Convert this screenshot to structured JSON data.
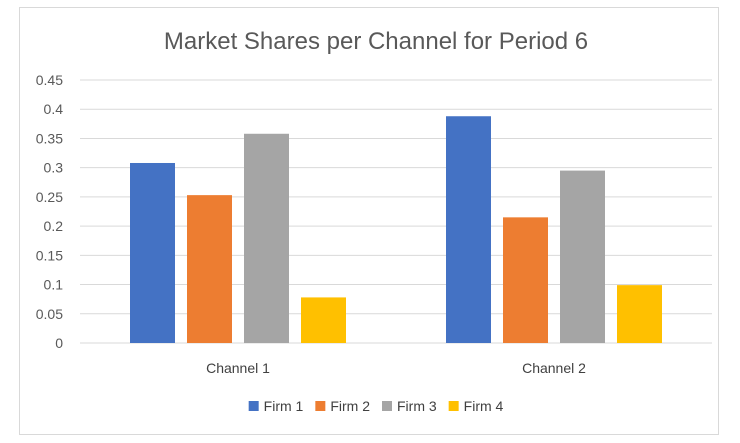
{
  "chart_data": {
    "type": "bar",
    "title": "Market Shares per Channel for Period 6",
    "categories": [
      "Channel 1",
      "Channel 2"
    ],
    "series": [
      {
        "name": "Firm 1",
        "color": "#4472c4",
        "values": [
          0.308,
          0.388
        ]
      },
      {
        "name": "Firm 2",
        "color": "#ed7d31",
        "values": [
          0.253,
          0.215
        ]
      },
      {
        "name": "Firm 3",
        "color": "#a5a5a5",
        "values": [
          0.358,
          0.295
        ]
      },
      {
        "name": "Firm 4",
        "color": "#ffc000",
        "values": [
          0.078,
          0.099
        ]
      }
    ],
    "ylim": [
      0,
      0.45
    ],
    "yticks": [
      "0",
      "0.05",
      "0.1",
      "0.15",
      "0.2",
      "0.25",
      "0.3",
      "0.35",
      "0.4",
      "0.45"
    ],
    "grid": true,
    "legend": "bottom"
  }
}
